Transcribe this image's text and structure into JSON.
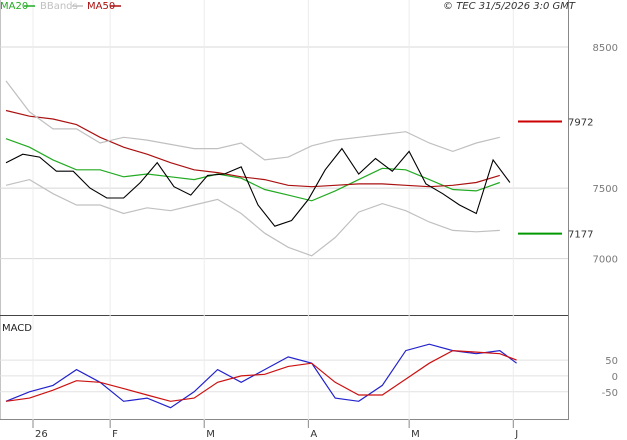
{
  "header": {
    "legend": [
      {
        "label": "MA20",
        "color": "#22aa22"
      },
      {
        "label": "BBands",
        "color": "#c0c0c0"
      },
      {
        "label": "MA50",
        "color": "#aa1111"
      }
    ],
    "copyright": "© TEC 31/5/2026 3:0 GMT"
  },
  "chart_data": [
    {
      "type": "line",
      "panel": "price",
      "title": "",
      "y_ticks": [
        "8500",
        "7500",
        "7000"
      ],
      "ylim": [
        6650,
        8720
      ],
      "x_ticks": [
        "26",
        "F",
        "M",
        "A",
        "M",
        "J"
      ],
      "x_start": "2026-01-01",
      "x_end": "2026-06-03",
      "levels": [
        {
          "label": "7972",
          "value": 7972,
          "color": "#cc0000"
        },
        {
          "label": "7177",
          "value": 7177,
          "color": "#009900"
        }
      ],
      "series": [
        {
          "name": "MA20",
          "color": "#22aa22",
          "points": [
            [
              "2026-01-01",
              7850
            ],
            [
              "2026-01-08",
              7790
            ],
            [
              "2026-01-15",
              7700
            ],
            [
              "2026-01-22",
              7630
            ],
            [
              "2026-01-29",
              7630
            ],
            [
              "2026-02-05",
              7580
            ],
            [
              "2026-02-12",
              7600
            ],
            [
              "2026-02-19",
              7580
            ],
            [
              "2026-02-26",
              7560
            ],
            [
              "2026-03-05",
              7600
            ],
            [
              "2026-03-12",
              7570
            ],
            [
              "2026-03-19",
              7490
            ],
            [
              "2026-03-26",
              7450
            ],
            [
              "2026-04-02",
              7410
            ],
            [
              "2026-04-09",
              7480
            ],
            [
              "2026-04-16",
              7560
            ],
            [
              "2026-04-23",
              7640
            ],
            [
              "2026-04-30",
              7630
            ],
            [
              "2026-05-07",
              7560
            ],
            [
              "2026-05-14",
              7490
            ],
            [
              "2026-05-21",
              7480
            ],
            [
              "2026-05-28",
              7540
            ]
          ]
        },
        {
          "name": "MA50",
          "color": "#aa1111",
          "points": [
            [
              "2026-01-01",
              8050
            ],
            [
              "2026-01-08",
              8010
            ],
            [
              "2026-01-15",
              7990
            ],
            [
              "2026-01-22",
              7950
            ],
            [
              "2026-01-29",
              7860
            ],
            [
              "2026-02-05",
              7790
            ],
            [
              "2026-02-12",
              7740
            ],
            [
              "2026-02-19",
              7680
            ],
            [
              "2026-02-26",
              7630
            ],
            [
              "2026-03-05",
              7610
            ],
            [
              "2026-03-12",
              7580
            ],
            [
              "2026-03-19",
              7560
            ],
            [
              "2026-03-26",
              7520
            ],
            [
              "2026-04-02",
              7510
            ],
            [
              "2026-04-09",
              7520
            ],
            [
              "2026-04-16",
              7530
            ],
            [
              "2026-04-23",
              7530
            ],
            [
              "2026-04-30",
              7520
            ],
            [
              "2026-05-07",
              7510
            ],
            [
              "2026-05-14",
              7520
            ],
            [
              "2026-05-21",
              7540
            ],
            [
              "2026-05-28",
              7590
            ]
          ]
        },
        {
          "name": "BBands",
          "color": "#c0c0c0",
          "points": [
            [
              "2026-01-01",
              8260
            ],
            [
              "2026-01-08",
              8040
            ],
            [
              "2026-01-15",
              7920
            ],
            [
              "2026-01-22",
              7920
            ],
            [
              "2026-01-29",
              7820
            ],
            [
              "2026-02-05",
              7860
            ],
            [
              "2026-02-12",
              7840
            ],
            [
              "2026-02-19",
              7810
            ],
            [
              "2026-02-26",
              7780
            ],
            [
              "2026-03-05",
              7780
            ],
            [
              "2026-03-12",
              7820
            ],
            [
              "2026-03-19",
              7700
            ],
            [
              "2026-03-26",
              7720
            ],
            [
              "2026-04-02",
              7800
            ],
            [
              "2026-04-09",
              7840
            ],
            [
              "2026-04-16",
              7860
            ],
            [
              "2026-04-23",
              7880
            ],
            [
              "2026-04-30",
              7900
            ],
            [
              "2026-05-07",
              7820
            ],
            [
              "2026-05-14",
              7760
            ],
            [
              "2026-05-21",
              7820
            ],
            [
              "2026-05-28",
              7860
            ]
          ]
        },
        {
          "name": "BBands lower",
          "color": "#c0c0c0",
          "points": [
            [
              "2026-01-01",
              7520
            ],
            [
              "2026-01-08",
              7560
            ],
            [
              "2026-01-15",
              7460
            ],
            [
              "2026-01-22",
              7380
            ],
            [
              "2026-01-29",
              7380
            ],
            [
              "2026-02-05",
              7320
            ],
            [
              "2026-02-12",
              7360
            ],
            [
              "2026-02-19",
              7340
            ],
            [
              "2026-02-26",
              7380
            ],
            [
              "2026-03-05",
              7420
            ],
            [
              "2026-03-12",
              7320
            ],
            [
              "2026-03-19",
              7180
            ],
            [
              "2026-03-26",
              7080
            ],
            [
              "2026-04-02",
              7020
            ],
            [
              "2026-04-09",
              7150
            ],
            [
              "2026-04-16",
              7330
            ],
            [
              "2026-04-23",
              7390
            ],
            [
              "2026-04-30",
              7340
            ],
            [
              "2026-05-07",
              7260
            ],
            [
              "2026-05-14",
              7200
            ],
            [
              "2026-05-21",
              7190
            ],
            [
              "2026-05-28",
              7200
            ]
          ]
        },
        {
          "name": "Price",
          "color": "#000000",
          "points": [
            [
              "2026-01-01",
              7680
            ],
            [
              "2026-01-06",
              7740
            ],
            [
              "2026-01-11",
              7720
            ],
            [
              "2026-01-16",
              7620
            ],
            [
              "2026-01-21",
              7620
            ],
            [
              "2026-01-26",
              7500
            ],
            [
              "2026-01-31",
              7430
            ],
            [
              "2026-02-05",
              7430
            ],
            [
              "2026-02-10",
              7540
            ],
            [
              "2026-02-15",
              7680
            ],
            [
              "2026-02-20",
              7510
            ],
            [
              "2026-02-25",
              7450
            ],
            [
              "2026-03-02",
              7590
            ],
            [
              "2026-03-07",
              7600
            ],
            [
              "2026-03-12",
              7650
            ],
            [
              "2026-03-17",
              7380
            ],
            [
              "2026-03-22",
              7230
            ],
            [
              "2026-03-27",
              7270
            ],
            [
              "2026-04-01",
              7420
            ],
            [
              "2026-04-06",
              7630
            ],
            [
              "2026-04-11",
              7780
            ],
            [
              "2026-04-16",
              7600
            ],
            [
              "2026-04-21",
              7710
            ],
            [
              "2026-04-26",
              7620
            ],
            [
              "2026-05-01",
              7760
            ],
            [
              "2026-05-06",
              7530
            ],
            [
              "2026-05-11",
              7460
            ],
            [
              "2026-05-16",
              7380
            ],
            [
              "2026-05-21",
              7320
            ],
            [
              "2026-05-26",
              7700
            ],
            [
              "2026-05-31",
              7540
            ]
          ]
        }
      ]
    },
    {
      "type": "line",
      "panel": "macd",
      "title": "MACD",
      "y_ticks": [
        "50",
        "0",
        "-50"
      ],
      "ylim": [
        -120,
        170
      ],
      "series": [
        {
          "name": "MACD",
          "color": "#2222cc",
          "points": [
            [
              "2026-01-01",
              -80
            ],
            [
              "2026-01-08",
              -50
            ],
            [
              "2026-01-15",
              -30
            ],
            [
              "2026-01-22",
              20
            ],
            [
              "2026-01-29",
              -20
            ],
            [
              "2026-02-05",
              -80
            ],
            [
              "2026-02-12",
              -70
            ],
            [
              "2026-02-19",
              -100
            ],
            [
              "2026-02-26",
              -50
            ],
            [
              "2026-03-05",
              20
            ],
            [
              "2026-03-12",
              -20
            ],
            [
              "2026-03-19",
              20
            ],
            [
              "2026-03-26",
              60
            ],
            [
              "2026-04-02",
              40
            ],
            [
              "2026-04-09",
              -70
            ],
            [
              "2026-04-16",
              -80
            ],
            [
              "2026-04-23",
              -30
            ],
            [
              "2026-04-30",
              80
            ],
            [
              "2026-05-07",
              100
            ],
            [
              "2026-05-14",
              80
            ],
            [
              "2026-05-21",
              70
            ],
            [
              "2026-05-28",
              80
            ],
            [
              "2026-06-02",
              40
            ]
          ]
        },
        {
          "name": "Signal",
          "color": "#cc1111",
          "points": [
            [
              "2026-01-01",
              -80
            ],
            [
              "2026-01-08",
              -70
            ],
            [
              "2026-01-15",
              -45
            ],
            [
              "2026-01-22",
              -15
            ],
            [
              "2026-01-29",
              -20
            ],
            [
              "2026-02-05",
              -40
            ],
            [
              "2026-02-12",
              -60
            ],
            [
              "2026-02-19",
              -80
            ],
            [
              "2026-02-26",
              -70
            ],
            [
              "2026-03-05",
              -20
            ],
            [
              "2026-03-12",
              0
            ],
            [
              "2026-03-19",
              5
            ],
            [
              "2026-03-26",
              30
            ],
            [
              "2026-04-02",
              40
            ],
            [
              "2026-04-09",
              -20
            ],
            [
              "2026-04-16",
              -60
            ],
            [
              "2026-04-23",
              -60
            ],
            [
              "2026-04-30",
              -10
            ],
            [
              "2026-05-07",
              40
            ],
            [
              "2026-05-14",
              80
            ],
            [
              "2026-05-21",
              75
            ],
            [
              "2026-05-28",
              70
            ],
            [
              "2026-06-02",
              50
            ]
          ]
        }
      ]
    }
  ]
}
